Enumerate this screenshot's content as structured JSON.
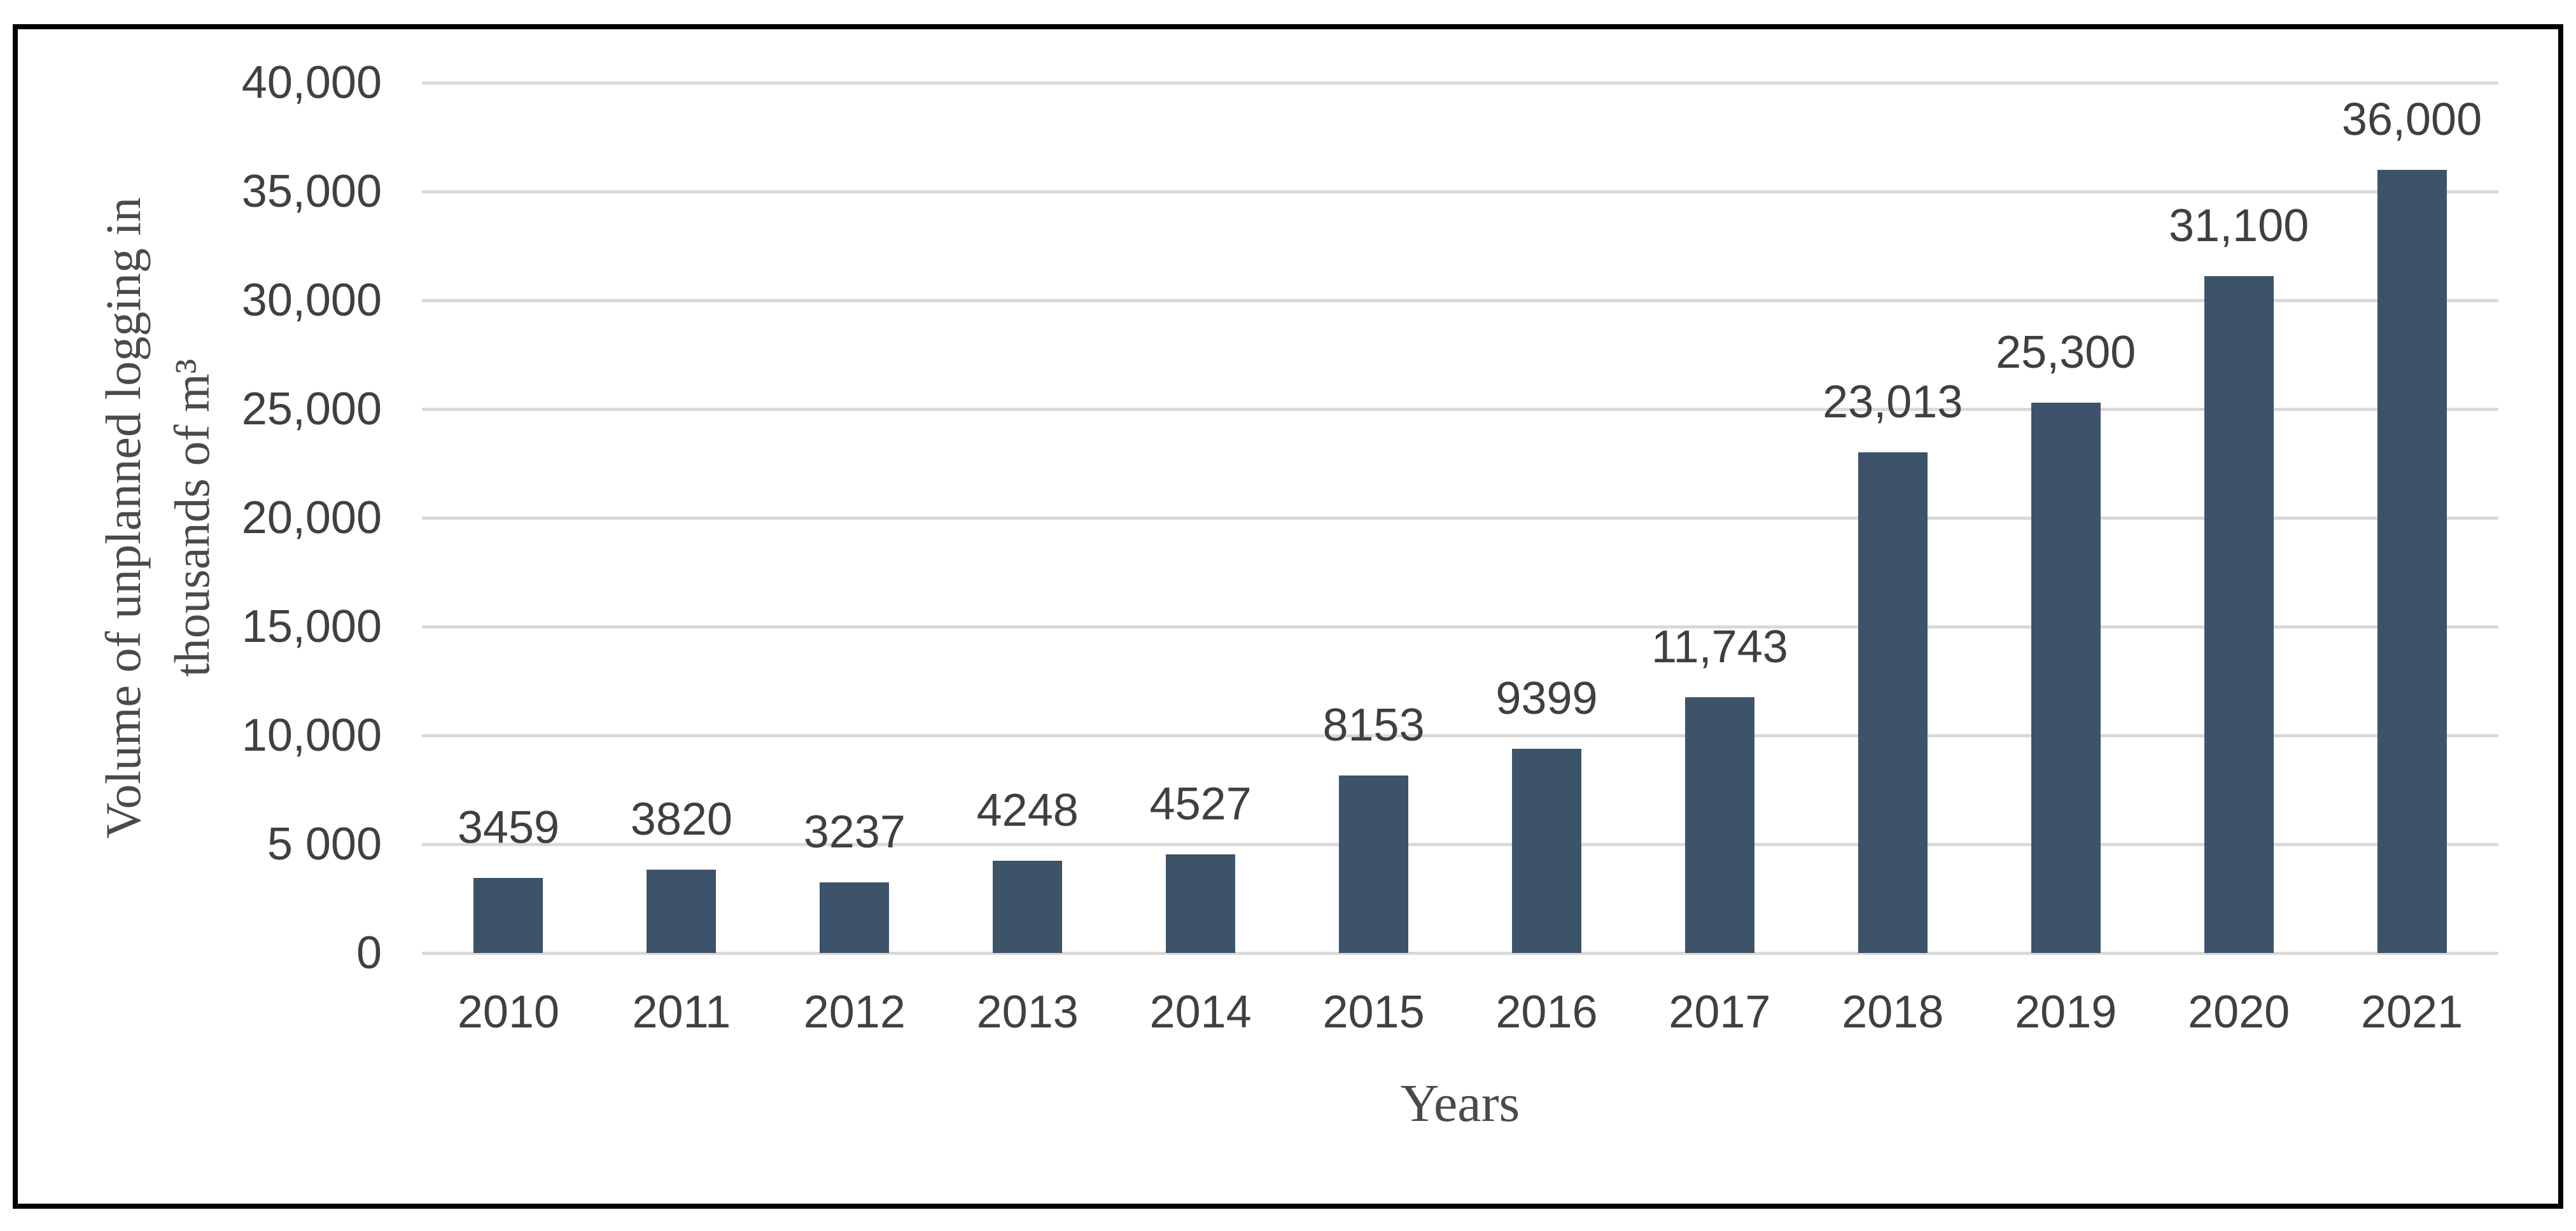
{
  "chart_data": {
    "type": "bar",
    "title": "",
    "categories": [
      "2010",
      "2011",
      "2012",
      "2013",
      "2014",
      "2015",
      "2016",
      "2017",
      "2018",
      "2019",
      "2020",
      "2021"
    ],
    "values": [
      3459,
      3820,
      3237,
      4248,
      4527,
      8153,
      9399,
      11743,
      23013,
      25300,
      31100,
      36000
    ],
    "data_labels": [
      "3459",
      "3820",
      "3237",
      "4248",
      "4527",
      "8153",
      "9399",
      "11,743",
      "23,013",
      "25,300",
      "31,100",
      "36,000"
    ],
    "xlabel": "Years",
    "ylabel_line1": "Volume of unplanned logging in",
    "ylabel_line2": "thousands of m³",
    "ylim": [
      0,
      40000
    ],
    "yticks": [
      {
        "value": 40000,
        "label": "40,000"
      },
      {
        "value": 35000,
        "label": "35,000"
      },
      {
        "value": 30000,
        "label": "30,000"
      },
      {
        "value": 25000,
        "label": "25,000"
      },
      {
        "value": 20000,
        "label": "20,000"
      },
      {
        "value": 15000,
        "label": "15,000"
      },
      {
        "value": 10000,
        "label": "10,000"
      },
      {
        "value": 5000,
        "label": "5 000"
      },
      {
        "value": 0,
        "label": "0"
      }
    ],
    "grid": true,
    "legend_position": "none",
    "colors": {
      "bar": "#3d5369",
      "gridline": "#d9d9d9",
      "tick_label": "#404040",
      "data_label": "#3f3f3f",
      "axis_title": "#4a4a4a",
      "frame_border": "#000000",
      "background": "#ffffff"
    }
  }
}
